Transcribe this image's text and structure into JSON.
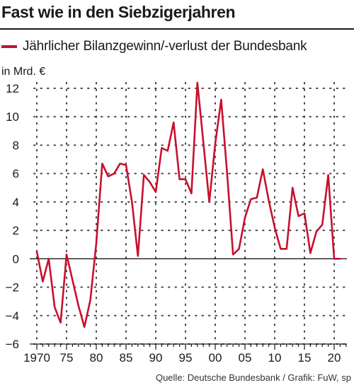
{
  "title": "Fast wie in den Siebzigerjahren",
  "source": "Quelle: Deutsche Bundesbank / Grafik: FuW, sp",
  "colors": {
    "series": "#c8102e",
    "text": "#1a1a1a"
  },
  "chart_data": {
    "type": "line",
    "ylabel": "in Mrd. €",
    "ylim": [
      -6,
      12
    ],
    "yticks": [
      12,
      10,
      8,
      6,
      4,
      2,
      0,
      -2,
      -4,
      -6
    ],
    "ytick_labels": [
      "12",
      "10",
      "8",
      "6",
      "4",
      "2",
      "0",
      "−2",
      "−4",
      "−6"
    ],
    "xlim": [
      1969,
      2022
    ],
    "xticks": [
      1970,
      1975,
      1980,
      1985,
      1990,
      1995,
      2000,
      2005,
      2010,
      2015,
      2020
    ],
    "xtick_labels": [
      "1970",
      "75",
      "80",
      "85",
      "90",
      "95",
      "00",
      "05",
      "10",
      "15",
      "20"
    ],
    "grid": "dotted",
    "series": [
      {
        "name": "Jährlicher Bilanzgewinn/-verlust der Bundesbank",
        "x": [
          1970,
          1971,
          1972,
          1973,
          1974,
          1975,
          1976,
          1977,
          1978,
          1979,
          1980,
          1981,
          1982,
          1983,
          1984,
          1985,
          1986,
          1987,
          1988,
          1989,
          1990,
          1991,
          1992,
          1993,
          1994,
          1995,
          1996,
          1997,
          1998,
          1999,
          2000,
          2001,
          2002,
          2003,
          2004,
          2005,
          2006,
          2007,
          2008,
          2009,
          2010,
          2011,
          2012,
          2013,
          2014,
          2015,
          2016,
          2017,
          2018,
          2019,
          2020,
          2021
        ],
        "y": [
          0.5,
          -1.6,
          0.0,
          -3.4,
          -4.5,
          0.3,
          -1.5,
          -3.3,
          -4.8,
          -2.9,
          1.1,
          6.7,
          5.8,
          6.0,
          6.7,
          6.6,
          4.0,
          0.2,
          5.9,
          5.4,
          4.7,
          7.8,
          7.6,
          9.6,
          5.6,
          5.6,
          4.6,
          12.4,
          8.2,
          4.0,
          8.1,
          11.2,
          6.0,
          0.3,
          0.7,
          2.9,
          4.2,
          4.3,
          6.3,
          4.1,
          2.2,
          0.7,
          0.7,
          5.0,
          3.0,
          3.2,
          0.4,
          1.9,
          2.4,
          5.9,
          0.0,
          0.0
        ]
      }
    ]
  }
}
